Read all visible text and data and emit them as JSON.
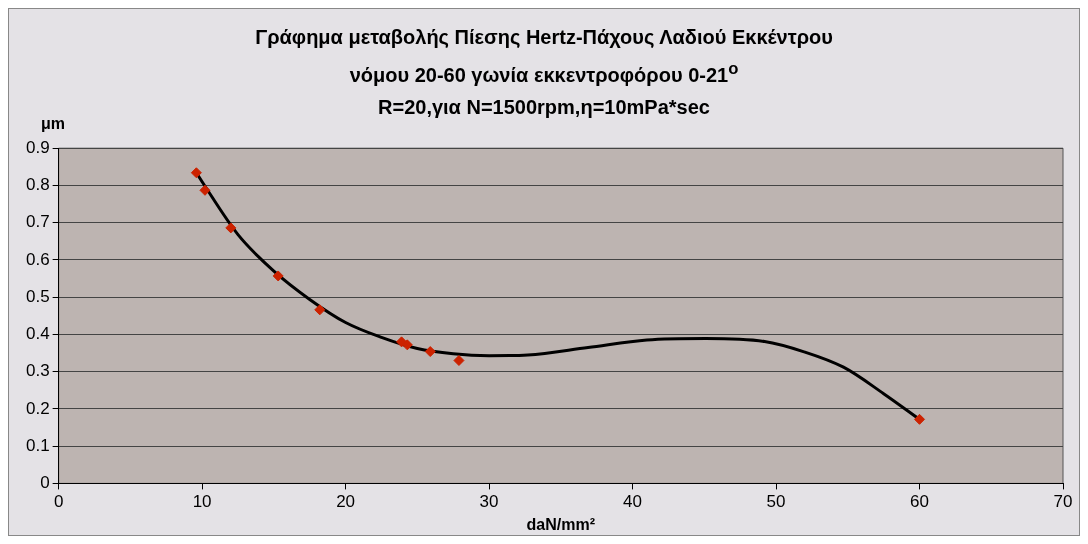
{
  "chart_data": {
    "type": "scatter",
    "title": "Γράφημα  μεταβολής Πίεσης Hertz-Πάχους Λαδιού Εκκέντρου",
    "subtitle": "νόμου 20-60 γωνία εκκεντροφόρου 0-21$^{o}$\nR=20,για N=1500rpm,η=10mPa*sec",
    "xlabel": "daN/mm²",
    "ylabel": "μm",
    "series": [
      {
        "type": "line",
        "marker": "none",
        "color": "#000000",
        "x": [
          9.6,
          10,
          12.5,
          15,
          17.5,
          20,
          22.5,
          25,
          27.5,
          30,
          32.7,
          36.9,
          41.0,
          45.1,
          49.2,
          51.9,
          54.7,
          57.5,
          60
        ],
        "values": [
          0.834,
          0.81,
          0.668,
          0.57,
          0.494,
          0.432,
          0.392,
          0.362,
          0.348,
          0.343,
          0.345,
          0.365,
          0.385,
          0.389,
          0.381,
          0.354,
          0.312,
          0.241,
          0.172
        ]
      },
      {
        "marker": "diamond",
        "color": "#cc2200",
        "x": [
          9.6,
          10.2,
          12,
          15.3,
          18.2,
          23.9,
          24.3,
          25.9,
          27.9,
          60
        ],
        "values": [
          0.834,
          0.787,
          0.686,
          0.557,
          0.466,
          0.38,
          0.372,
          0.354,
          0.33,
          0.172
        ]
      }
    ],
    "xlim": [
      0,
      70
    ],
    "xticks": [
      0,
      10,
      20,
      30,
      40,
      50,
      60,
      70
    ],
    "ylim": [
      0,
      0.9
    ],
    "yticks": [
      0,
      0.1,
      0.2,
      0.3,
      0.4,
      0.5,
      0.6,
      0.7,
      0.8,
      0.9
    ],
    "grid": "y",
    "legend": false
  }
}
